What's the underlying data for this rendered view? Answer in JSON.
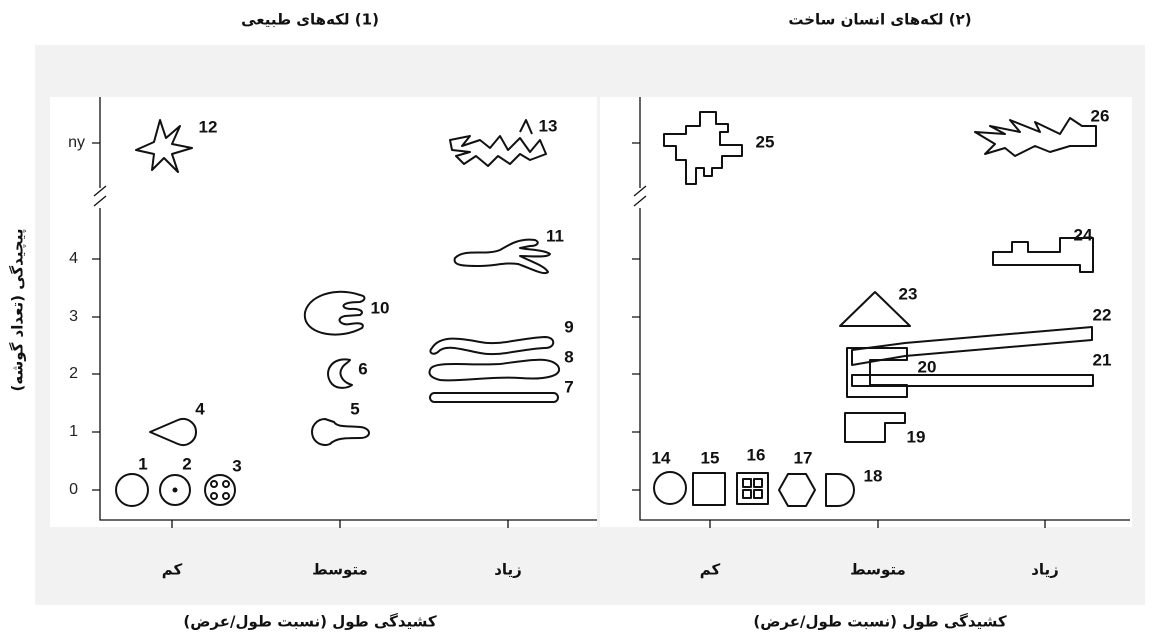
{
  "y_title": "پیچیدگی (تعداد گوشه)",
  "panels": [
    {
      "title": "(1) لکه‌های طبیعی",
      "yticks": [
        "ny",
        "4",
        "3",
        "2",
        "1",
        "0"
      ],
      "xticks": [
        "کم",
        "متوسط",
        "زیاد"
      ],
      "x_title": "کشیدگی طول (نسبت طول/عرض)",
      "shape_labels": [
        "1",
        "2",
        "3",
        "4",
        "5",
        "6",
        "7",
        "8",
        "9",
        "10",
        "11",
        "12",
        "13"
      ]
    },
    {
      "title": "(۲) لکه‌های انسان ساخت",
      "xticks": [
        "کم",
        "متوسط",
        "زیاد"
      ],
      "x_title": "کشیدگی طول (نسبت طول/عرض)",
      "shape_labels": [
        "14",
        "15",
        "16",
        "17",
        "18",
        "19",
        "20",
        "21",
        "22",
        "23",
        "24",
        "25",
        "26"
      ]
    }
  ]
}
